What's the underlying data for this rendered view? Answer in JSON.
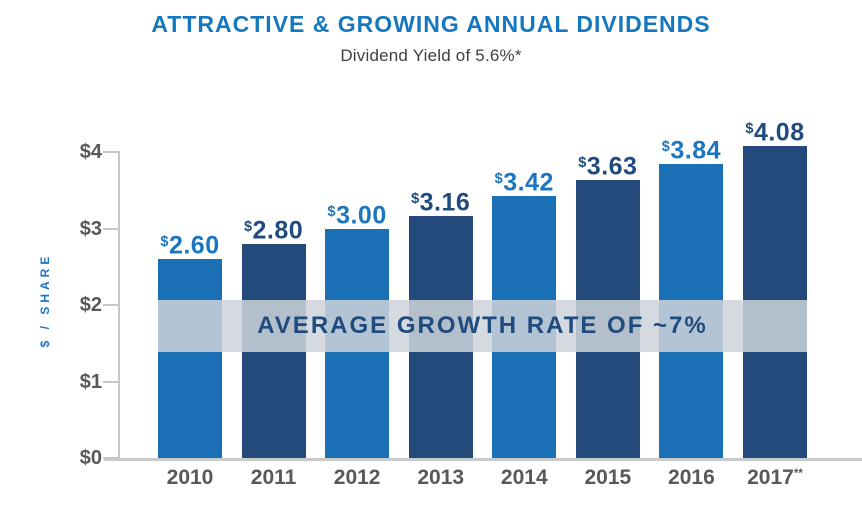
{
  "chart_data": {
    "type": "bar",
    "title": "ATTRACTIVE & GROWING ANNUAL DIVIDENDS",
    "subtitle": "Dividend Yield of 5.6%*",
    "ylabel": "$ / SHARE",
    "xlabel": "",
    "categories": [
      "2010",
      "2011",
      "2012",
      "2013",
      "2014",
      "2015",
      "2016",
      "2017**"
    ],
    "x_labels": [
      {
        "year": "2010",
        "suffix": ""
      },
      {
        "year": "2011",
        "suffix": ""
      },
      {
        "year": "2012",
        "suffix": ""
      },
      {
        "year": "2013",
        "suffix": ""
      },
      {
        "year": "2014",
        "suffix": ""
      },
      {
        "year": "2015",
        "suffix": ""
      },
      {
        "year": "2016",
        "suffix": ""
      },
      {
        "year": "2017",
        "suffix": "**"
      }
    ],
    "values": [
      2.6,
      2.8,
      3.0,
      3.16,
      3.42,
      3.63,
      3.84,
      4.08
    ],
    "value_labels": [
      "$2.60",
      "$2.80",
      "$3.00",
      "$3.16",
      "$3.42",
      "$3.63",
      "$3.84",
      "$4.08"
    ],
    "ylim": [
      0,
      4
    ],
    "yticks": {
      "values": [
        0,
        1,
        2,
        3,
        4
      ],
      "labels": [
        "$0",
        "$1",
        "$2",
        "$3",
        "$4"
      ]
    },
    "grid": false,
    "legend": null,
    "annotation": {
      "text": "AVERAGE GROWTH RATE OF ~7%",
      "band_value_range": [
        1.39,
        2.07
      ]
    },
    "colors": {
      "light_bar": "#1B6FB5",
      "dark_bar": "#24497B",
      "light_value_label": "#1B75C0",
      "dark_value_label": "#1F4B7E",
      "title": "#1578BE",
      "subtitle_text": "#3F4043",
      "axis_text": "#57585B",
      "axis_line": "#C5C6C8",
      "band_fill": "rgba(206,211,218,0.85)",
      "band_text": "#1F4B7E",
      "y_axis_title": "#1B75C0"
    }
  }
}
